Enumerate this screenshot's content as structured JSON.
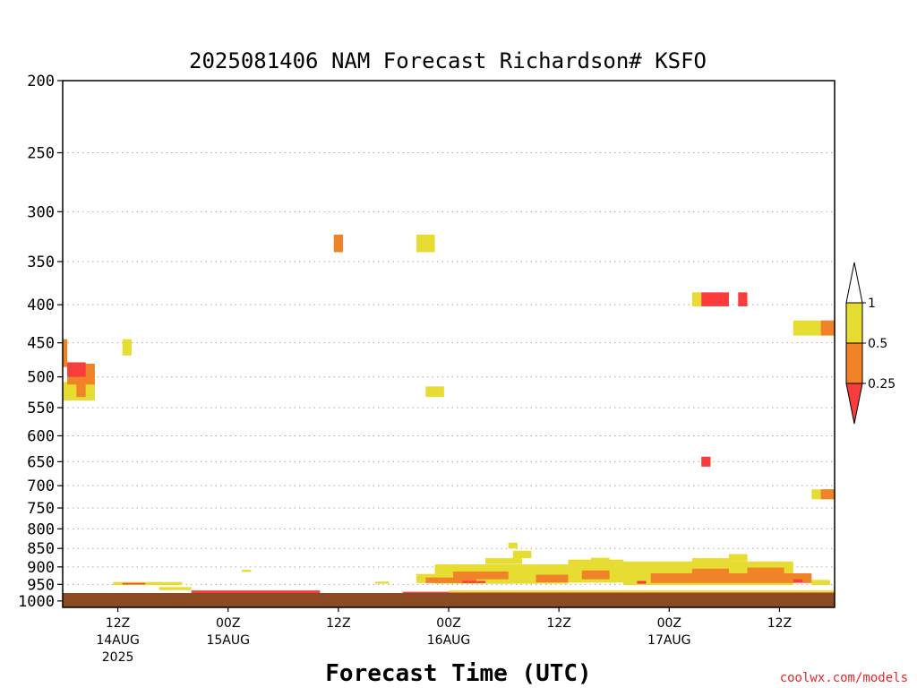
{
  "chart_data": {
    "type": "heatmap",
    "title": "2025081406 NAM Forecast Richardson# KSFO",
    "xlabel": "Forecast Time (UTC)",
    "ylabel": "",
    "x_unit": "forecast hour from 2025-08-14 06Z",
    "xlim": [
      0,
      84
    ],
    "y_scale": "log",
    "ylim": [
      1020,
      200
    ],
    "grid": "horizontal dotted",
    "yticks": [
      "200",
      "250",
      "300",
      "350",
      "400",
      "450",
      "500",
      "550",
      "600",
      "650",
      "700",
      "750",
      "800",
      "850",
      "900",
      "950",
      "1000"
    ],
    "xticks": [
      {
        "hour": 6,
        "label": "12Z",
        "sub": "14AUG",
        "sub2": "2025"
      },
      {
        "hour": 18,
        "label": "00Z",
        "sub": "15AUG",
        "sub2": ""
      },
      {
        "hour": 30,
        "label": "12Z",
        "sub": "",
        "sub2": ""
      },
      {
        "hour": 42,
        "label": "00Z",
        "sub": "16AUG",
        "sub2": ""
      },
      {
        "hour": 54,
        "label": "12Z",
        "sub": "",
        "sub2": ""
      },
      {
        "hour": 66,
        "label": "00Z",
        "sub": "17AUG",
        "sub2": ""
      },
      {
        "hour": 78,
        "label": "12Z",
        "sub": "",
        "sub2": ""
      }
    ],
    "legend": {
      "placement": "right",
      "levels": [
        "1",
        "0.5",
        "0.25"
      ],
      "bins": [
        {
          "range": "> 1",
          "color": "#ffffff"
        },
        {
          "range": "0.5 - 1",
          "color": "#e6dc32"
        },
        {
          "range": "0.25 - 0.5",
          "color": "#f08228"
        },
        {
          "range": "< 0.25",
          "color": "#fa3c3c"
        }
      ]
    },
    "colors": {
      "yellow": "#e6dc32",
      "orange": "#f08228",
      "red": "#fa3c3c",
      "ground": "#8b4a22"
    },
    "regions": [
      {
        "x": [
          0,
          0.5
        ],
        "p": [
          445,
          485
        ],
        "c": "orange"
      },
      {
        "x": [
          0,
          3.5
        ],
        "p": [
          508,
          538
        ],
        "c": "yellow"
      },
      {
        "x": [
          0.5,
          3.5
        ],
        "p": [
          480,
          512
        ],
        "c": "orange"
      },
      {
        "x": [
          0.5,
          2.5
        ],
        "p": [
          478,
          500
        ],
        "c": "red"
      },
      {
        "x": [
          1.5,
          2.5
        ],
        "p": [
          508,
          532
        ],
        "c": "orange"
      },
      {
        "x": [
          6.5,
          7.5
        ],
        "p": [
          445,
          468
        ],
        "c": "yellow"
      },
      {
        "x": [
          29.5,
          30.5
        ],
        "p": [
          322,
          340
        ],
        "c": "orange"
      },
      {
        "x": [
          38.5,
          40.5
        ],
        "p": [
          322,
          340
        ],
        "c": "yellow"
      },
      {
        "x": [
          39.5,
          41.5
        ],
        "p": [
          515,
          532
        ],
        "c": "yellow"
      },
      {
        "x": [
          69.5,
          70.5
        ],
        "p": [
          640,
          660
        ],
        "c": "red"
      },
      {
        "x": [
          68.5,
          69.5
        ],
        "p": [
          385,
          402
        ],
        "c": "yellow"
      },
      {
        "x": [
          69.5,
          72.5
        ],
        "p": [
          385,
          402
        ],
        "c": "red"
      },
      {
        "x": [
          73.5,
          74.5
        ],
        "p": [
          385,
          402
        ],
        "c": "red"
      },
      {
        "x": [
          79.5,
          84
        ],
        "p": [
          420,
          440
        ],
        "c": "yellow"
      },
      {
        "x": [
          82.5,
          84
        ],
        "p": [
          420,
          440
        ],
        "c": "orange"
      },
      {
        "x": [
          81.5,
          84
        ],
        "p": [
          708,
          730
        ],
        "c": "yellow"
      },
      {
        "x": [
          82.5,
          84
        ],
        "p": [
          708,
          730
        ],
        "c": "orange"
      },
      {
        "x": [
          5.5,
          13
        ],
        "p": [
          943,
          952
        ],
        "c": "yellow"
      },
      {
        "x": [
          6.5,
          9
        ],
        "p": [
          946,
          950
        ],
        "c": "red"
      },
      {
        "x": [
          10.5,
          14
        ],
        "p": [
          958,
          967
        ],
        "c": "yellow"
      },
      {
        "x": [
          19.5,
          20.5
        ],
        "p": [
          908,
          914
        ],
        "c": "yellow"
      },
      {
        "x": [
          34,
          35.5
        ],
        "p": [
          942,
          948
        ],
        "c": "yellow"
      },
      {
        "x": [
          38.5,
          42
        ],
        "p": [
          920,
          946
        ],
        "c": "yellow"
      },
      {
        "x": [
          40.5,
          55
        ],
        "p": [
          893,
          948
        ],
        "c": "yellow"
      },
      {
        "x": [
          46,
          50
        ],
        "p": [
          876,
          892
        ],
        "c": "yellow"
      },
      {
        "x": [
          49,
          51
        ],
        "p": [
          856,
          876
        ],
        "c": "yellow"
      },
      {
        "x": [
          48.5,
          49.5
        ],
        "p": [
          835,
          850
        ],
        "c": "yellow"
      },
      {
        "x": [
          39.5,
          45
        ],
        "p": [
          930,
          946
        ],
        "c": "orange"
      },
      {
        "x": [
          42.5,
          48.5
        ],
        "p": [
          913,
          935
        ],
        "c": "orange"
      },
      {
        "x": [
          51.5,
          57
        ],
        "p": [
          922,
          944
        ],
        "c": "orange"
      },
      {
        "x": [
          43.5,
          46
        ],
        "p": [
          940,
          946
        ],
        "c": "red"
      },
      {
        "x": [
          55,
          61
        ],
        "p": [
          880,
          945
        ],
        "c": "yellow"
      },
      {
        "x": [
          57.5,
          59.5
        ],
        "p": [
          875,
          900
        ],
        "c": "yellow"
      },
      {
        "x": [
          56.5,
          59.5
        ],
        "p": [
          910,
          935
        ],
        "c": "orange"
      },
      {
        "x": [
          61,
          79.5
        ],
        "p": [
          885,
          952
        ],
        "c": "yellow"
      },
      {
        "x": [
          68.5,
          72.5
        ],
        "p": [
          876,
          888
        ],
        "c": "yellow"
      },
      {
        "x": [
          72.5,
          74.5
        ],
        "p": [
          865,
          885
        ],
        "c": "yellow"
      },
      {
        "x": [
          64,
          81.5
        ],
        "p": [
          918,
          946
        ],
        "c": "orange"
      },
      {
        "x": [
          68.5,
          72.5
        ],
        "p": [
          905,
          920
        ],
        "c": "orange"
      },
      {
        "x": [
          74.5,
          78.5
        ],
        "p": [
          902,
          918
        ],
        "c": "orange"
      },
      {
        "x": [
          62.5,
          63.5
        ],
        "p": [
          940,
          948
        ],
        "c": "red"
      },
      {
        "x": [
          79.5,
          80.5
        ],
        "p": [
          935,
          944
        ],
        "c": "red"
      },
      {
        "x": [
          81.5,
          83.5
        ],
        "p": [
          937,
          952
        ],
        "c": "yellow"
      },
      {
        "x": [
          0,
          84
        ],
        "p": [
          983,
          1000
        ],
        "c": "red"
      },
      {
        "x": [
          37,
          84
        ],
        "p": [
          972,
          984
        ],
        "c": "red"
      },
      {
        "x": [
          14,
          28
        ],
        "p": [
          968,
          982
        ],
        "c": "red"
      },
      {
        "x": [
          42,
          84
        ],
        "p": [
          968,
          974
        ],
        "c": "yellow"
      },
      {
        "x": [
          0,
          84
        ],
        "p": [
          980,
          984
        ],
        "c": "yellow"
      },
      {
        "x": [
          0,
          84
        ],
        "p": [
          995,
          1000
        ],
        "c": "orange"
      }
    ]
  },
  "credit": "coolwx.com/models"
}
